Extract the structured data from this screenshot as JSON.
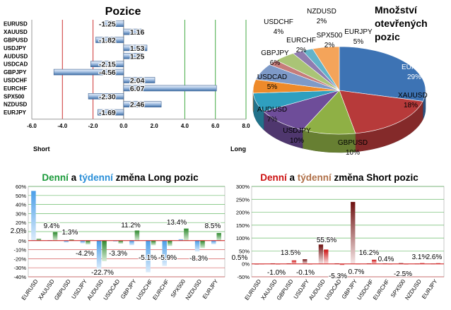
{
  "titles": {
    "positions": "Pozice",
    "open_positions": [
      "Množství",
      "otevřených",
      "pozic"
    ],
    "long_change": [
      {
        "text": "Denní",
        "color": "#1a9a3a"
      },
      {
        "text": " a ",
        "color": "#000000"
      },
      {
        "text": "týdenní",
        "color": "#2a8fd8"
      },
      {
        "text": " změna Long pozic",
        "color": "#000000"
      }
    ],
    "short_change": [
      {
        "text": "Denní",
        "color": "#cc1111"
      },
      {
        "text": " a ",
        "color": "#000000"
      },
      {
        "text": "týdenní",
        "color": "#b07048"
      },
      {
        "text": " změna Short pozic",
        "color": "#000000"
      }
    ]
  },
  "chart_data": [
    {
      "id": "positions",
      "type": "bar",
      "orientation": "horizontal",
      "categories": [
        "EURUSD",
        "XAUUSD",
        "GBPUSD",
        "USDJPY",
        "AUDUSD",
        "USDCAD",
        "GBPJPY",
        "USDCHF",
        "EURCHF",
        "SPX500",
        "NZDUSD",
        "EURJPY"
      ],
      "values": [
        -1.25,
        1.16,
        -1.82,
        1.53,
        1.25,
        -2.15,
        -4.56,
        2.04,
        6.07,
        -2.3,
        2.46,
        -1.69
      ],
      "labels": [
        "-1.25",
        "1.16",
        "-1.82",
        "1.53",
        "1.25",
        "-2.15",
        "-4.56",
        "2.04",
        "6.07",
        "-2.30",
        "2.46",
        "-1.69"
      ],
      "xlim": [
        -6.0,
        8.0
      ],
      "xticks": [
        "-6.0",
        "-4.0",
        "-2.0",
        "0.0",
        "2.0",
        "4.0",
        "6.0",
        "8.0"
      ],
      "xlabel_left": "Short",
      "xlabel_right": "Long",
      "colors": {
        "bar": "#4a78b0",
        "bar_light": "#dce8f6",
        "line_red": "#cc3333",
        "line_green": "#44aa44"
      }
    },
    {
      "id": "open_positions",
      "type": "pie",
      "slices": [
        {
          "label": "EURUSD",
          "value": 29,
          "text": "29%",
          "color": "#3d73b4"
        },
        {
          "label": "XAUUSD",
          "value": 18,
          "text": "18%",
          "color": "#b73a3a"
        },
        {
          "label": "GBPUSD",
          "value": 10,
          "text": "10%",
          "color": "#8fb045"
        },
        {
          "label": "USDJPY",
          "value": 10,
          "text": "10%",
          "color": "#6e4d99"
        },
        {
          "label": "AUDUSD",
          "value": 7,
          "text": "7%",
          "color": "#2f9fbf"
        },
        {
          "label": "USDCAD",
          "value": 5,
          "text": "5%",
          "color": "#ee8a2a"
        },
        {
          "label": "GBPJPY",
          "value": 6,
          "text": "6%",
          "color": "#7e9ac8"
        },
        {
          "label": "EURCHF",
          "value": 2,
          "text": "2%",
          "color": "#c67c7a"
        },
        {
          "label": "USDCHF",
          "value": 4,
          "text": "4%",
          "color": "#aac476"
        },
        {
          "label": "NZDUSD",
          "value": 2,
          "text": "2%",
          "color": "#8f7cb0"
        },
        {
          "label": "SPX500",
          "value": 2,
          "text": "2%",
          "color": "#62b3c9"
        },
        {
          "label": "EURJPY",
          "value": 5,
          "text": "5%",
          "color": "#f4a45a"
        }
      ]
    },
    {
      "id": "long_change",
      "type": "bar",
      "categories": [
        "EURUSD",
        "XAUUSD",
        "GBPUSD",
        "USDJPY",
        "AUDUSD",
        "USDCAD",
        "GBPJPY",
        "USDCHF",
        "EURCHF",
        "SPX500",
        "NZDUSD",
        "EURJPY"
      ],
      "series": [
        {
          "name": "Denní",
          "values": [
            2.0,
            9.4,
            1.3,
            -4.2,
            -22.7,
            -3.3,
            11.2,
            -5.1,
            -5.9,
            13.4,
            -8.3,
            8.5
          ],
          "color": "#2f8a2f"
        },
        {
          "name": "týdenní",
          "values": [
            55.0,
            0.5,
            -2.0,
            -3.0,
            -31.0,
            -1.0,
            -5.0,
            -35.0,
            -28.0,
            1.5,
            -12.0,
            -4.0
          ],
          "color": "#4a9ee8"
        }
      ],
      "value_labels": [
        {
          "text": "2.0%",
          "category": "EURUSD",
          "value": 2.0
        },
        {
          "text": "9.4%",
          "category": "XAUUSD",
          "value": 9.4
        },
        {
          "text": "1.3%",
          "category": "GBPUSD",
          "value": 1.3
        },
        {
          "text": "-4.2%",
          "category": "USDJPY",
          "value": -4.2
        },
        {
          "text": "-22.7%",
          "category": "AUDUSD",
          "value": -22.7
        },
        {
          "text": "-3.3%",
          "category": "USDCAD",
          "value": -3.3
        },
        {
          "text": "11.2%",
          "category": "GBPJPY",
          "value": 11.2
        },
        {
          "text": "-5.1%",
          "category": "USDCHF",
          "value": -5.1
        },
        {
          "text": "-5.9%",
          "category": "EURCHF",
          "value": -5.9
        },
        {
          "text": "13.4%",
          "category": "SPX500",
          "value": 13.4
        },
        {
          "text": "-8.3%",
          "category": "NZDUSD",
          "value": -8.3
        },
        {
          "text": "8.5%",
          "category": "EURJPY",
          "value": 8.5
        }
      ],
      "ylim": [
        -40,
        60
      ],
      "yticks": [
        "60%",
        "50%",
        "40%",
        "30%",
        "20%",
        "10%",
        "0%",
        "-10%",
        "-20%",
        "-30%",
        "-40%"
      ]
    },
    {
      "id": "short_change",
      "type": "bar",
      "categories": [
        "EURUSD",
        "XAUUSD",
        "GBPUSD",
        "USDJPY",
        "AUDUSD",
        "USDCAD",
        "GBPJPY",
        "USDCHF",
        "EURCHF",
        "SPX500",
        "NZDUSD",
        "EURJPY"
      ],
      "series": [
        {
          "name": "Denní",
          "values": [
            0.5,
            -1.0,
            13.5,
            -0.1,
            55.5,
            -5.3,
            0.7,
            16.2,
            0.4,
            -2.5,
            3.1,
            2.6
          ],
          "color": "#cc1111"
        },
        {
          "name": "týdenní",
          "values": [
            -3.0,
            2.0,
            2.0,
            18.0,
            75.0,
            2.0,
            240.0,
            2.0,
            1.5,
            3.0,
            1.0,
            1.0
          ],
          "color": "#8a1a1a"
        }
      ],
      "value_labels": [
        {
          "text": "0.5%",
          "category": "EURUSD",
          "value": 0.5
        },
        {
          "text": "-1.0%",
          "category": "XAUUSD",
          "value": -1.0
        },
        {
          "text": "13.5%",
          "category": "GBPUSD",
          "value": 13.5
        },
        {
          "text": "-0.1%",
          "category": "USDJPY",
          "value": -0.1
        },
        {
          "text": "55.5%",
          "category": "AUDUSD",
          "value": 55.5
        },
        {
          "text": "-5.3%",
          "category": "USDCAD",
          "value": -5.3
        },
        {
          "text": "0.7%",
          "category": "GBPJPY",
          "value": 0.7
        },
        {
          "text": "16.2%",
          "category": "USDCHF",
          "value": 16.2
        },
        {
          "text": "0.4%",
          "category": "EURCHF",
          "value": 0.4
        },
        {
          "text": "-2.5%",
          "category": "SPX500",
          "value": -2.5
        },
        {
          "text": "3.1%",
          "category": "NZDUSD",
          "value": 3.1
        },
        {
          "text": "2.6%",
          "category": "EURJPY",
          "value": 2.6
        }
      ],
      "ylim": [
        -50,
        300
      ],
      "yticks": [
        "300%",
        "250%",
        "200%",
        "150%",
        "100%",
        "50%",
        "0%",
        "-50%"
      ]
    }
  ]
}
